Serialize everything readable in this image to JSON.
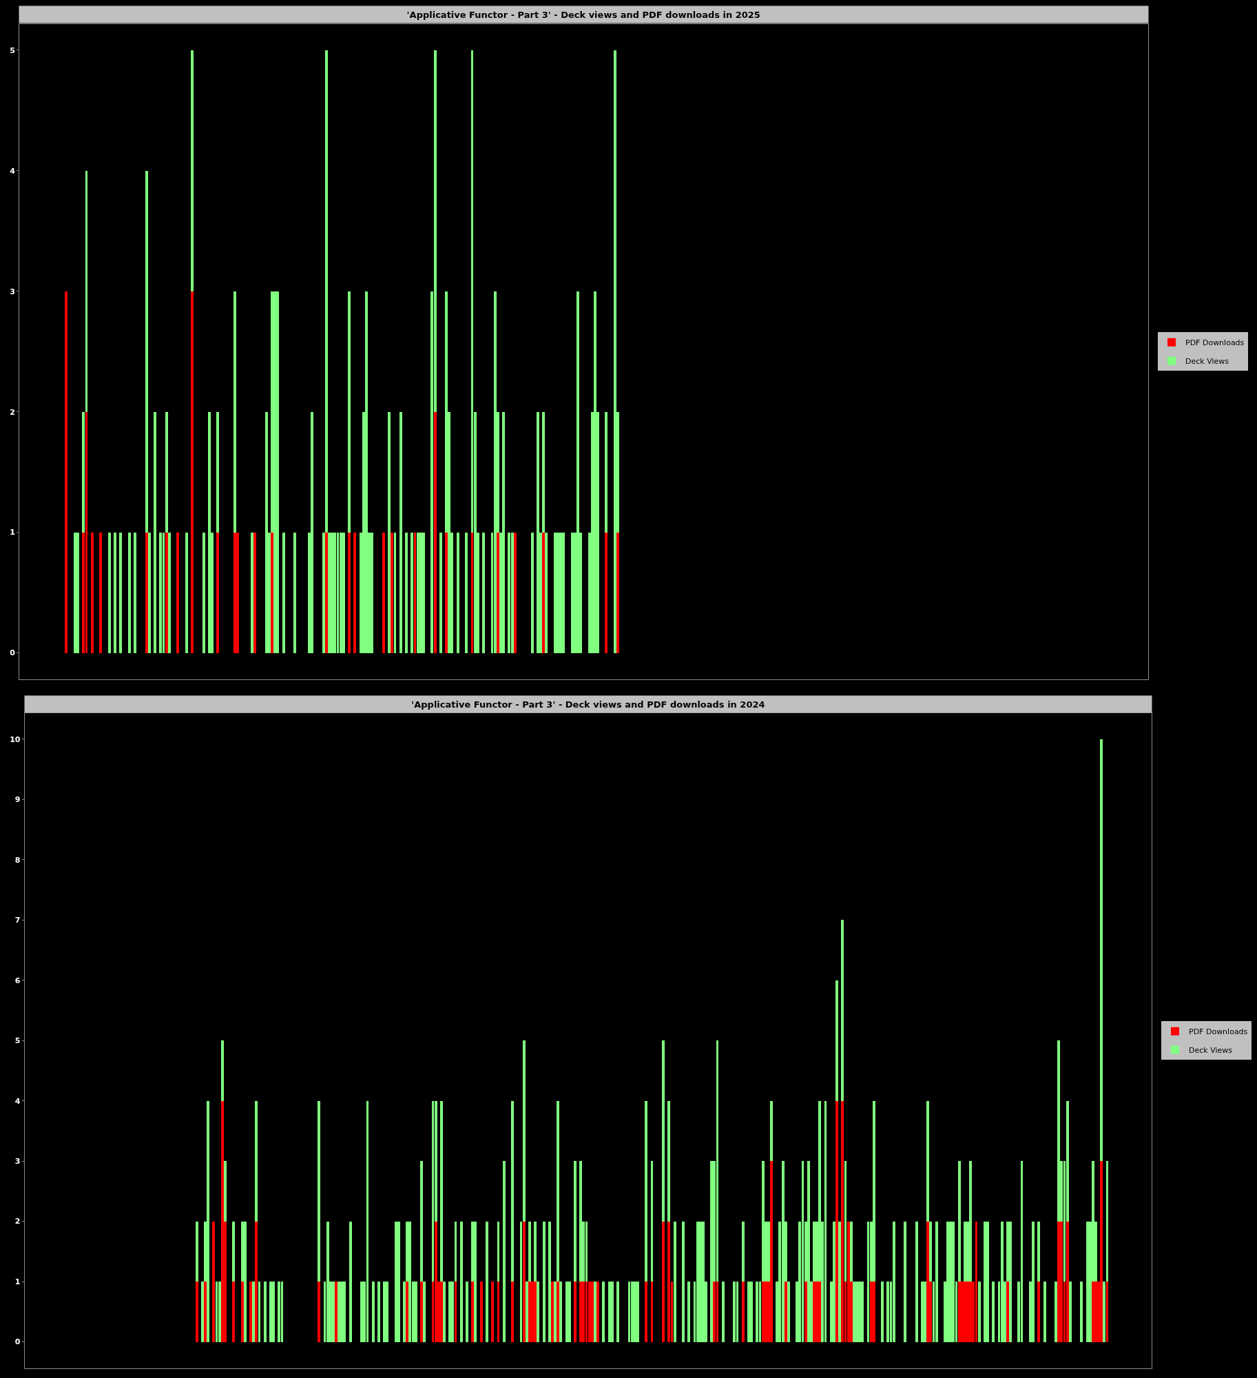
{
  "chart_data": [
    {
      "type": "bar",
      "title": "'Applicative Functor - Part 3' - Deck views and PDF downloads in 2025",
      "categories": [
        null,
        null,
        null,
        null,
        null,
        null,
        null,
        null,
        null,
        null,
        null,
        null,
        null,
        null,
        null,
        null,
        null,
        null,
        null,
        null,
        null,
        null,
        null,
        null,
        null,
        null,
        null,
        null,
        null,
        null,
        null,
        null,
        null,
        null,
        null,
        null,
        null,
        null,
        null,
        null,
        null,
        null,
        null,
        null,
        null,
        null,
        null,
        null,
        null,
        null,
        null,
        null,
        null,
        null,
        null,
        null,
        null,
        null,
        null,
        null,
        null,
        null,
        null,
        null,
        null,
        null,
        null,
        null,
        null,
        null,
        null,
        null,
        null,
        null,
        null,
        null,
        null,
        null,
        null,
        null,
        null,
        null,
        null,
        null,
        null,
        null,
        null,
        null,
        null,
        null,
        null,
        null,
        null,
        null,
        null,
        null,
        null,
        null,
        null,
        null,
        null,
        null,
        null,
        null,
        null,
        null,
        null,
        null,
        null,
        null,
        null,
        null,
        null,
        null,
        null,
        null,
        null,
        null,
        null,
        null,
        null,
        null,
        null,
        null,
        null,
        null,
        null,
        null,
        null,
        null,
        null,
        null,
        null,
        null,
        null,
        null,
        null,
        null,
        null,
        null,
        null,
        null,
        null,
        null,
        null,
        null,
        null,
        null,
        null,
        null,
        null,
        null,
        null,
        null,
        null,
        null,
        null,
        null,
        null,
        null,
        null,
        null,
        null,
        null,
        null,
        null,
        null,
        null,
        null,
        null,
        null,
        null,
        null,
        null,
        null,
        null,
        null,
        null,
        null,
        null,
        null,
        null,
        null,
        null,
        null,
        null,
        null,
        null,
        null,
        null,
        null,
        null,
        null,
        null,
        null,
        null,
        null,
        null,
        null,
        null,
        null,
        null,
        null,
        null,
        null,
        null,
        null,
        null,
        null,
        null,
        null,
        null,
        null,
        null,
        null,
        null,
        null,
        null,
        null,
        null,
        null,
        null,
        null,
        null,
        null,
        null,
        null,
        null,
        null,
        null,
        null,
        null,
        null,
        null,
        null,
        null,
        null,
        null,
        null,
        null,
        null,
        null,
        null,
        null,
        null,
        null,
        null,
        null,
        null,
        null,
        null,
        null,
        null,
        null,
        null,
        null,
        null,
        null,
        null,
        null,
        null,
        null,
        null,
        null,
        null,
        null,
        null,
        null,
        null,
        null,
        null,
        null,
        null,
        null,
        null,
        null,
        null,
        null,
        null,
        null,
        null,
        null,
        null,
        null,
        null,
        null,
        null,
        null,
        null,
        null,
        null,
        null,
        null,
        null,
        null,
        null,
        null,
        null,
        null,
        null,
        null,
        null,
        null,
        null,
        null,
        null,
        null,
        null,
        null,
        null,
        null,
        null,
        null,
        null,
        null,
        null,
        null,
        null,
        null,
        null,
        null,
        null,
        null,
        null,
        null,
        null,
        null,
        null,
        null,
        null,
        null,
        null,
        null,
        null,
        null,
        null,
        null,
        null,
        null,
        null,
        null,
        null,
        null,
        null,
        null,
        null,
        null,
        null,
        null,
        null,
        null,
        null,
        null,
        null,
        null,
        null,
        null,
        null,
        null,
        null,
        null,
        null,
        null,
        null,
        null,
        null,
        null,
        null,
        null,
        null,
        null,
        null,
        null,
        null,
        null,
        null,
        null,
        null,
        null,
        null,
        null,
        null,
        null,
        null,
        null,
        null,
        null,
        null,
        null,
        null,
        null,
        null,
        null,
        null,
        null
      ],
      "series": [
        {
          "name": "PDF Downloads",
          "color": "#ff0000",
          "values": [
            null,
            null,
            null,
            null,
            null,
            null,
            null,
            null,
            null,
            null,
            null,
            null,
            null,
            null,
            null,
            null,
            3,
            null,
            null,
            null,
            null,
            null,
            1,
            2,
            null,
            1,
            null,
            null,
            1,
            null,
            null,
            null,
            null,
            null,
            null,
            null,
            null,
            null,
            null,
            null,
            null,
            null,
            null,
            null,
            1,
            null,
            null,
            null,
            null,
            null,
            null,
            1,
            null,
            null,
            null,
            1,
            null,
            null,
            null,
            null,
            3,
            null,
            null,
            null,
            null,
            null,
            null,
            null,
            null,
            1,
            null,
            null,
            null,
            null,
            null,
            1,
            1,
            null,
            null,
            null,
            null,
            null,
            1,
            null,
            null,
            null,
            null,
            null,
            1,
            null,
            null,
            null,
            null,
            null,
            null,
            null,
            null,
            null,
            null,
            null,
            null,
            null,
            null,
            null,
            null,
            null,
            null,
            1,
            null,
            null,
            null,
            null,
            null,
            null,
            null,
            1,
            null,
            1,
            null,
            null,
            null,
            null,
            null,
            null,
            null,
            null,
            null,
            1,
            null,
            null,
            1,
            null,
            null,
            null,
            null,
            null,
            null,
            null,
            1,
            null,
            null,
            null,
            null,
            null,
            null,
            2,
            null,
            null,
            null,
            1,
            null,
            null,
            null,
            null,
            null,
            null,
            null,
            null,
            1,
            null,
            null,
            null,
            null,
            null,
            null,
            null,
            null,
            1,
            null,
            null,
            null,
            null,
            null,
            1,
            null,
            null,
            null,
            null,
            null,
            null,
            null,
            null,
            null,
            1,
            null,
            null,
            null,
            null,
            null,
            null,
            null,
            null,
            null,
            null,
            null,
            null,
            null,
            null,
            null,
            null,
            null,
            null,
            null,
            null,
            null,
            1,
            null,
            null,
            null,
            1,
            null,
            null,
            null,
            null,
            null,
            null,
            null,
            null,
            null,
            null,
            null,
            null,
            null,
            null,
            null,
            null,
            null,
            null,
            null,
            null,
            null,
            null,
            null,
            null,
            null,
            null,
            null,
            null,
            null,
            null,
            null,
            null,
            null,
            null,
            null,
            null,
            null,
            null,
            null,
            null,
            null,
            null,
            null,
            null,
            null,
            null,
            null,
            null,
            null,
            null,
            null,
            null,
            null,
            null,
            null,
            null,
            null,
            null,
            null,
            null,
            null,
            null,
            null,
            null,
            null,
            null,
            null,
            null,
            null,
            null,
            null,
            null,
            null,
            null,
            null,
            null,
            null,
            null,
            null,
            null,
            null,
            null,
            null,
            null,
            null,
            null,
            null,
            null,
            null,
            null,
            null,
            null,
            null,
            null,
            null,
            null,
            null,
            null,
            null,
            null,
            null,
            null,
            null,
            null,
            null,
            null,
            null,
            null,
            null,
            null,
            null,
            null,
            null,
            null,
            null,
            null,
            null,
            null,
            null,
            null,
            null,
            null,
            null,
            null,
            null,
            null,
            null,
            null,
            null,
            null,
            null,
            null,
            null,
            null,
            null,
            null,
            null,
            null,
            null,
            null,
            null,
            null,
            null,
            null,
            null,
            null,
            null,
            null,
            null,
            null,
            null,
            null,
            null,
            null,
            null,
            null,
            null,
            null,
            null,
            null,
            null,
            null,
            null,
            null,
            null,
            null,
            null,
            null,
            null,
            null,
            null,
            null,
            null,
            null,
            null,
            null,
            null,
            null,
            null,
            null,
            null,
            null,
            null,
            null,
            null
          ]
        },
        {
          "name": "Deck Views",
          "color": "#80ff80",
          "values": [
            null,
            null,
            null,
            null,
            null,
            null,
            null,
            null,
            null,
            null,
            null,
            null,
            null,
            null,
            null,
            null,
            null,
            null,
            null,
            1,
            1,
            null,
            1,
            2,
            null,
            null,
            null,
            null,
            null,
            null,
            null,
            1,
            null,
            1,
            null,
            1,
            null,
            null,
            1,
            null,
            1,
            null,
            null,
            null,
            3,
            1,
            null,
            2,
            null,
            1,
            1,
            1,
            1,
            null,
            null,
            null,
            null,
            null,
            1,
            null,
            2,
            null,
            null,
            null,
            1,
            null,
            2,
            1,
            null,
            1,
            null,
            null,
            null,
            null,
            null,
            2,
            null,
            null,
            null,
            null,
            null,
            1,
            null,
            null,
            null,
            null,
            2,
            1,
            2,
            3,
            3,
            null,
            1,
            null,
            null,
            null,
            1,
            null,
            null,
            null,
            null,
            1,
            2,
            null,
            null,
            null,
            1,
            4,
            1,
            1,
            1,
            1,
            1,
            1,
            null,
            2,
            null,
            null,
            null,
            1,
            2,
            3,
            1,
            1,
            null,
            null,
            null,
            null,
            null,
            2,
            null,
            1,
            null,
            2,
            null,
            1,
            null,
            1,
            null,
            1,
            1,
            1,
            null,
            null,
            3,
            3,
            null,
            1,
            null,
            2,
            2,
            1,
            null,
            1,
            null,
            null,
            1,
            null,
            4,
            2,
            1,
            null,
            1,
            null,
            null,
            1,
            3,
            1,
            1,
            2,
            null,
            1,
            1,
            null,
            null,
            null,
            null,
            null,
            null,
            1,
            null,
            2,
            1,
            1,
            1,
            null,
            null,
            1,
            1,
            1,
            1,
            null,
            null,
            1,
            1,
            3,
            1,
            null,
            null,
            1,
            2,
            3,
            2,
            null,
            null,
            1,
            null,
            null,
            5,
            1,
            null,
            null,
            null,
            null,
            null,
            null,
            null,
            null,
            null,
            null,
            null,
            null,
            null,
            null,
            null,
            null,
            null,
            null,
            null,
            null,
            null,
            null,
            null,
            null,
            null,
            null,
            null,
            null,
            null,
            null,
            null,
            null,
            null,
            null,
            null,
            null,
            null,
            null,
            null,
            null,
            null,
            null,
            null,
            null,
            null,
            null,
            null,
            null,
            null,
            null,
            null,
            null,
            null,
            null,
            null,
            null,
            null,
            null,
            null,
            null,
            null,
            null,
            null,
            null,
            null,
            null,
            null,
            null,
            null,
            null,
            null,
            null,
            null,
            null,
            null,
            null,
            null,
            null,
            null,
            null,
            null,
            null,
            null,
            null,
            null,
            null,
            null,
            null,
            null,
            null,
            null,
            null,
            null,
            null,
            null,
            null,
            null,
            null,
            null,
            null,
            null,
            null,
            null,
            null,
            null,
            null,
            null,
            null,
            null,
            null,
            null,
            null,
            null,
            null,
            null,
            null,
            null,
            null,
            null,
            null,
            null,
            null,
            null,
            null,
            null,
            null,
            null,
            null,
            null,
            null,
            null,
            null,
            null,
            null,
            null,
            null,
            null,
            null,
            null,
            null,
            null,
            null,
            null,
            null,
            null,
            null,
            null,
            null,
            null,
            null,
            null,
            null,
            null,
            null,
            null,
            null,
            null,
            null,
            null,
            null,
            null,
            null,
            null,
            null,
            null,
            null,
            null,
            null,
            null,
            null,
            null,
            null,
            null,
            null,
            null,
            null,
            null,
            null,
            null,
            null,
            null,
            null,
            null,
            null,
            null
          ]
        }
      ],
      "stacked": true,
      "ylim": [
        -0.22,
        5.22
      ],
      "yticks": [
        0,
        1,
        2,
        3,
        4,
        5
      ],
      "tick_labels": "y",
      "legend": "right"
    },
    {
      "type": "bar",
      "title": "'Applicative Functor - Part 3' - Deck views and PDF downloads in 2024",
      "categories": [
        null,
        null,
        null,
        null,
        null,
        null,
        null,
        null,
        null,
        null,
        null,
        null,
        null,
        null,
        null,
        null,
        null,
        null,
        null,
        null,
        null,
        null,
        null,
        null,
        null,
        null,
        null,
        null,
        null,
        null,
        null,
        null,
        null,
        null,
        null,
        null,
        null,
        null,
        null,
        null,
        null,
        null,
        null,
        null,
        null,
        null,
        null,
        null,
        null,
        null,
        null,
        null,
        null,
        null,
        null,
        null,
        null,
        null,
        null,
        null,
        null,
        null,
        null,
        null,
        null,
        null,
        null,
        null,
        null,
        null,
        null,
        null,
        null,
        null,
        null,
        null,
        null,
        null,
        null,
        null,
        null,
        null,
        null,
        null,
        null,
        null,
        null,
        null,
        null,
        null,
        null,
        null,
        null,
        null,
        null,
        null,
        null,
        null,
        null,
        null,
        null,
        null,
        null,
        null,
        null,
        null,
        null,
        null,
        null,
        null,
        null,
        null,
        null,
        null,
        null,
        null,
        null,
        null,
        null,
        null,
        null,
        null,
        null,
        null,
        null,
        null,
        null,
        null,
        null,
        null,
        null,
        null,
        null,
        null,
        null,
        null,
        null,
        null,
        null,
        null,
        null,
        null,
        null,
        null,
        null,
        null,
        null,
        null,
        null,
        null,
        null,
        null,
        null,
        null,
        null,
        null,
        null,
        null,
        null,
        null,
        null,
        null,
        null,
        null,
        null,
        null,
        null,
        null,
        null,
        null,
        null,
        null,
        null,
        null,
        null,
        null,
        null,
        null,
        null,
        null,
        null,
        null,
        null,
        null,
        null,
        null,
        null,
        null,
        null,
        null,
        null,
        null,
        null,
        null,
        null,
        null,
        null,
        null,
        null,
        null,
        null,
        null,
        null,
        null,
        null,
        null,
        null,
        null,
        null,
        null,
        null,
        null,
        null,
        null,
        null,
        null,
        null,
        null,
        null,
        null,
        null,
        null,
        null,
        null,
        null,
        null,
        null,
        null,
        null,
        null,
        null,
        null,
        null,
        null,
        null,
        null,
        null,
        null,
        null,
        null,
        null,
        null,
        null,
        null,
        null,
        null,
        null,
        null,
        null,
        null,
        null,
        null,
        null,
        null,
        null,
        null,
        null,
        null,
        null,
        null,
        null,
        null,
        null,
        null,
        null,
        null,
        null,
        null,
        null,
        null,
        null,
        null,
        null,
        null,
        null,
        null,
        null,
        null,
        null,
        null,
        null,
        null,
        null,
        null,
        null,
        null,
        null,
        null,
        null,
        null,
        null,
        null,
        null,
        null,
        null,
        null,
        null,
        null,
        null,
        null,
        null,
        null,
        null,
        null,
        null,
        null,
        null,
        null,
        null,
        null,
        null,
        null,
        null,
        null,
        null,
        null,
        null,
        null,
        null,
        null,
        null,
        null,
        null,
        null,
        null,
        null,
        null,
        null,
        null,
        null,
        null,
        null,
        null,
        null,
        null,
        null,
        null,
        null,
        null,
        null,
        null,
        null,
        null,
        null,
        null,
        null,
        null,
        null,
        null,
        null,
        null,
        null,
        null,
        null,
        null,
        null,
        null,
        null,
        null,
        null,
        null,
        null,
        null,
        null,
        null,
        null,
        null,
        null,
        null,
        null,
        null,
        null,
        null,
        null,
        null,
        null,
        null,
        null,
        null,
        null,
        null,
        null,
        null,
        null,
        null,
        null,
        null,
        null,
        null,
        null,
        null,
        null,
        null,
        null,
        null,
        null
      ],
      "series": [
        {
          "name": "PDF Downloads",
          "color": "#ff0000",
          "values": [
            null,
            null,
            null,
            null,
            null,
            null,
            null,
            null,
            null,
            null,
            null,
            null,
            null,
            null,
            null,
            null,
            null,
            null,
            null,
            null,
            null,
            null,
            null,
            null,
            null,
            null,
            null,
            null,
            null,
            null,
            null,
            null,
            null,
            null,
            null,
            null,
            null,
            null,
            null,
            null,
            null,
            null,
            null,
            null,
            null,
            null,
            null,
            null,
            null,
            null,
            null,
            null,
            null,
            null,
            null,
            null,
            null,
            null,
            null,
            null,
            1,
            null,
            null,
            1,
            null,
            null,
            2,
            null,
            null,
            4,
            2,
            null,
            null,
            1,
            null,
            null,
            1,
            null,
            null,
            1,
            null,
            2,
            null,
            null,
            null,
            null,
            null,
            null,
            null,
            null,
            null,
            null,
            null,
            null,
            null,
            null,
            null,
            null,
            null,
            null,
            null,
            null,
            null,
            1,
            null,
            null,
            null,
            null,
            null,
            1,
            null,
            null,
            null,
            null,
            null,
            null,
            null,
            null,
            null,
            null,
            null,
            null,
            null,
            null,
            null,
            null,
            null,
            null,
            null,
            null,
            null,
            null,
            null,
            null,
            1,
            null,
            null,
            null,
            null,
            1,
            null,
            null,
            null,
            1,
            2,
            1,
            1,
            null,
            null,
            null,
            null,
            1,
            null,
            null,
            null,
            null,
            null,
            1,
            null,
            null,
            1,
            null,
            null,
            null,
            1,
            null,
            1,
            null,
            null,
            null,
            null,
            1,
            null,
            null,
            null,
            2,
            null,
            1,
            1,
            1,
            null,
            null,
            null,
            null,
            null,
            1,
            null,
            1,
            null,
            null,
            null,
            null,
            null,
            1,
            null,
            1,
            1,
            1,
            1,
            1,
            null,
            1,
            null,
            null,
            null,
            null,
            null,
            null,
            null,
            null,
            null,
            null,
            null,
            null,
            null,
            null,
            null,
            null,
            1,
            null,
            1,
            null,
            null,
            null,
            2,
            null,
            2,
            1,
            null,
            null,
            null,
            null,
            null,
            null,
            null,
            null,
            null,
            null,
            null,
            null,
            null,
            null,
            1,
            1,
            null,
            null,
            null,
            null,
            null,
            null,
            null,
            null,
            1,
            null,
            null,
            null,
            null,
            null,
            null,
            1,
            1,
            1,
            3,
            null,
            null,
            null,
            null,
            1,
            null,
            null,
            null,
            null,
            null,
            null,
            1,
            null,
            null,
            1,
            1,
            1,
            null,
            null,
            null,
            null,
            null,
            4,
            null,
            4,
            1,
            2,
            1,
            null,
            null,
            null,
            null,
            null,
            null,
            1,
            1,
            null,
            null,
            null,
            null,
            null,
            null,
            null,
            null,
            null,
            null,
            null,
            null,
            null,
            null,
            null,
            null,
            null,
            null,
            2,
            1,
            null,
            null,
            null,
            null,
            null,
            null,
            null,
            null,
            null,
            1,
            1,
            1,
            1,
            1,
            1,
            2,
            null,
            null,
            null,
            null,
            null,
            null,
            null,
            null,
            null,
            null,
            1,
            null,
            null,
            null,
            null,
            null,
            null,
            null,
            null,
            null,
            null,
            1,
            null,
            null,
            null,
            null,
            null,
            null,
            2,
            2,
            1,
            2,
            null,
            null,
            null,
            null,
            null,
            null,
            null,
            null,
            1,
            1,
            1,
            3,
            null,
            1,
            null,
            null,
            null,
            null,
            null,
            null,
            null,
            null,
            null,
            null,
            null,
            null,
            null,
            null,
            null
          ]
        },
        {
          "name": "Deck Views",
          "color": "#80ff80",
          "values": [
            null,
            null,
            null,
            null,
            null,
            null,
            null,
            null,
            null,
            null,
            null,
            null,
            null,
            null,
            null,
            null,
            null,
            null,
            null,
            null,
            null,
            null,
            null,
            null,
            null,
            null,
            null,
            null,
            null,
            null,
            null,
            null,
            null,
            null,
            null,
            null,
            null,
            null,
            null,
            null,
            null,
            null,
            null,
            null,
            null,
            null,
            null,
            null,
            null,
            null,
            null,
            null,
            null,
            null,
            null,
            null,
            null,
            null,
            null,
            null,
            1,
            null,
            1,
            1,
            4,
            null,
            null,
            1,
            1,
            1,
            1,
            null,
            null,
            1,
            null,
            null,
            1,
            2,
            null,
            null,
            1,
            2,
            1,
            null,
            1,
            null,
            1,
            1,
            null,
            1,
            1,
            null,
            null,
            null,
            null,
            null,
            null,
            null,
            null,
            null,
            null,
            null,
            null,
            3,
            null,
            1,
            2,
            1,
            1,
            null,
            1,
            1,
            1,
            null,
            2,
            null,
            null,
            null,
            1,
            1,
            4,
            null,
            1,
            null,
            1,
            null,
            1,
            1,
            null,
            null,
            2,
            2,
            null,
            1,
            1,
            2,
            1,
            1,
            null,
            2,
            1,
            null,
            null,
            3,
            2,
            null,
            3,
            1,
            null,
            1,
            1,
            1,
            null,
            2,
            null,
            1,
            null,
            1,
            2,
            null,
            null,
            null,
            2,
            null,
            null,
            null,
            1,
            null,
            3,
            null,
            null,
            3,
            null,
            null,
            2,
            3,
            1,
            1,
            null,
            1,
            1,
            null,
            2,
            null,
            2,
            null,
            1,
            3,
            1,
            null,
            1,
            1,
            null,
            2,
            null,
            2,
            1,
            1,
            null,
            null,
            1,
            null,
            null,
            1,
            null,
            1,
            1,
            null,
            1,
            null,
            null,
            null,
            1,
            1,
            1,
            1,
            null,
            null,
            3,
            null,
            2,
            null,
            null,
            null,
            3,
            null,
            2,
            null,
            2,
            null,
            null,
            2,
            null,
            1,
            null,
            1,
            2,
            2,
            2,
            1,
            null,
            3,
            2,
            4,
            null,
            1,
            null,
            null,
            null,
            1,
            1,
            null,
            1,
            null,
            1,
            1,
            null,
            1,
            1,
            2,
            1,
            1,
            1,
            null,
            1,
            2,
            3,
            1,
            1,
            null,
            null,
            1,
            2,
            3,
            1,
            3,
            1,
            1,
            1,
            3,
            2,
            4,
            null,
            1,
            2,
            2,
            2,
            3,
            2,
            null,
            1,
            1,
            1,
            1,
            1,
            null,
            2,
            1,
            3,
            null,
            null,
            1,
            null,
            1,
            1,
            2,
            null,
            null,
            null,
            2,
            null,
            null,
            null,
            2,
            null,
            1,
            1,
            2,
            1,
            1,
            2,
            null,
            null,
            1,
            2,
            2,
            2,
            1,
            2,
            null,
            1,
            1,
            2,
            null,
            null,
            1,
            null,
            2,
            2,
            null,
            1,
            null,
            1,
            2,
            1,
            1,
            2,
            null,
            null,
            1,
            3,
            null,
            null,
            1,
            2,
            null,
            1,
            null,
            1,
            null,
            null,
            null,
            1,
            3,
            1,
            2,
            2,
            1,
            null,
            null,
            null,
            1,
            null,
            2,
            2,
            2,
            1,
            null,
            7,
            1,
            2,
            null,
            null,
            null,
            null,
            null,
            null,
            null,
            null,
            null,
            null,
            null,
            null,
            null,
            null,
            null
          ]
        }
      ],
      "stacked": true,
      "ylim": [
        -0.44,
        10.44
      ],
      "yticks": [
        0,
        1,
        2,
        3,
        4,
        5,
        6,
        7,
        8,
        9,
        10
      ],
      "tick_labels": "y",
      "legend": "right"
    }
  ]
}
